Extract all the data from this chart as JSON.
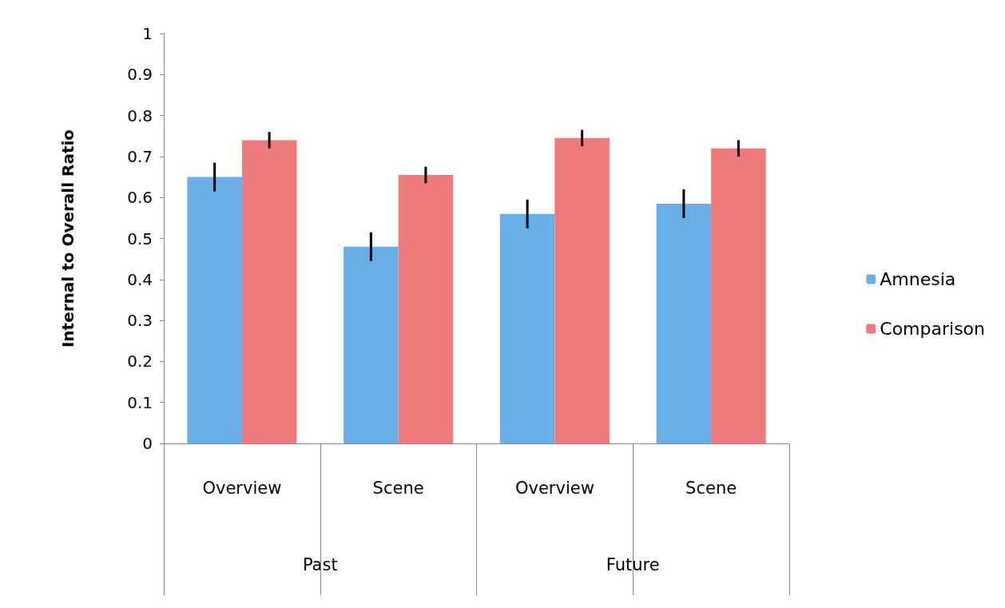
{
  "chart_data": {
    "type": "bar",
    "ylabel": "Internal to Overall Ratio",
    "categories": [
      "Overview",
      "Scene",
      "Overview",
      "Scene"
    ],
    "annotations": [
      "Past",
      "Future"
    ],
    "series": [
      {
        "name": "Amnesia",
        "color": "#6aaee8",
        "values": [
          0.65,
          0.48,
          0.56,
          0.585
        ],
        "errors": [
          0.035,
          0.035,
          0.035,
          0.035
        ]
      },
      {
        "name": "Comparison",
        "color": "#ee7b7b",
        "values": [
          0.74,
          0.655,
          0.745,
          0.72
        ],
        "errors": [
          0.02,
          0.02,
          0.02,
          0.02
        ]
      }
    ],
    "ylim": [
      0,
      1
    ],
    "yticks": [
      0,
      0.1,
      0.2,
      0.3,
      0.4,
      0.5,
      0.6,
      0.7,
      0.8,
      0.9,
      1
    ],
    "grid": false,
    "legend": "right"
  }
}
